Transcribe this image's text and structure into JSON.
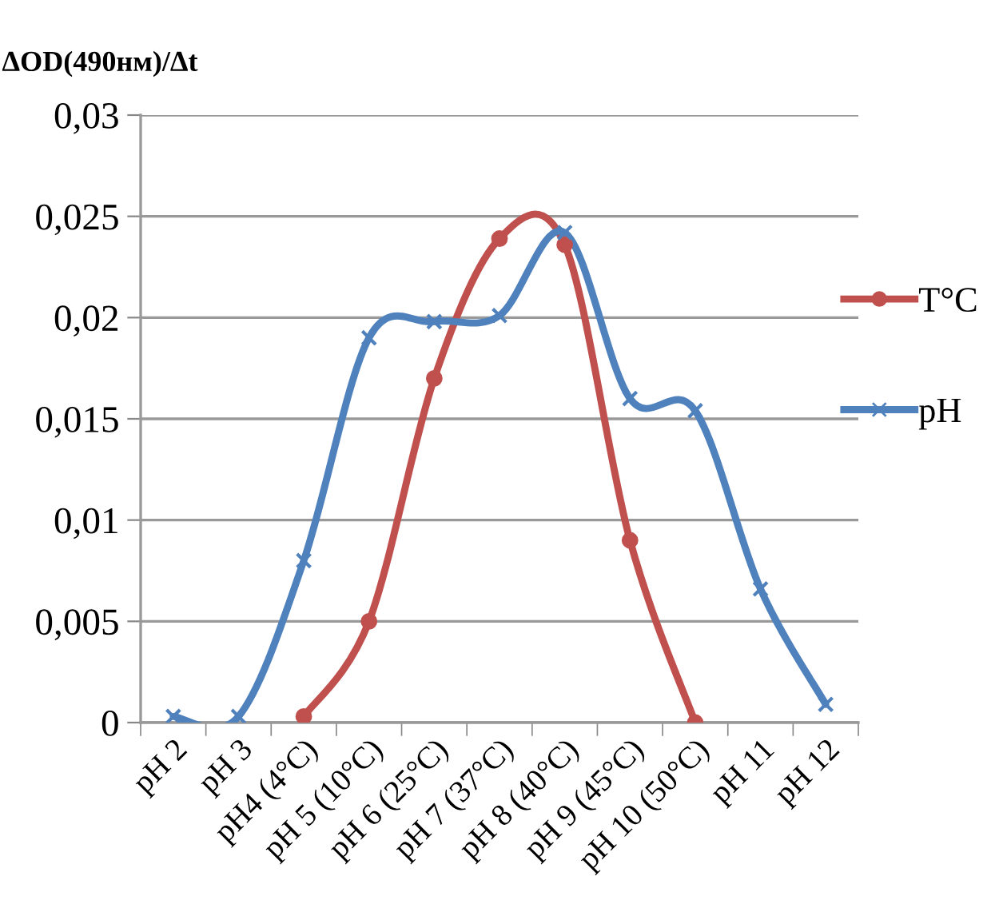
{
  "chart_data": {
    "type": "line",
    "ylabel": "ΔOD(490нм)/Δt",
    "categories": [
      "pH 2",
      "pH 3",
      "pH4 (4°C)",
      "pH 5 (10°C)",
      "pH 6 (25°C)",
      "pH 7 (37°C)",
      "pH 8 (40°C)",
      "pH 9 (45°C)",
      "pH 10 (50°C)",
      "pH 11",
      "pH 12"
    ],
    "series": [
      {
        "name": "T°C",
        "color": "#c0504d",
        "marker": "circle",
        "values": [
          null,
          null,
          0.0003,
          0.005,
          0.017,
          0.0239,
          0.0236,
          0.009,
          0.0,
          null,
          null
        ]
      },
      {
        "name": "pH",
        "color": "#4f81bd",
        "marker": "cross",
        "values": [
          0.0003,
          0.0003,
          0.008,
          0.019,
          0.0198,
          0.0201,
          0.0242,
          0.016,
          0.0154,
          0.0066,
          0.0009
        ]
      }
    ],
    "ylim": [
      0,
      0.03
    ],
    "yticks": [
      0,
      {
        "value": 0.005,
        "label": "0,005"
      },
      {
        "value": 0.01,
        "label": "0,01"
      },
      {
        "value": 0.015,
        "label": "0,015"
      },
      {
        "value": 0.02,
        "label": "0,02"
      },
      {
        "value": 0.025,
        "label": "0,025"
      },
      {
        "value": 0.03,
        "label": "0,03"
      }
    ],
    "grid": "y",
    "legend": "right",
    "line_style": "solid"
  }
}
